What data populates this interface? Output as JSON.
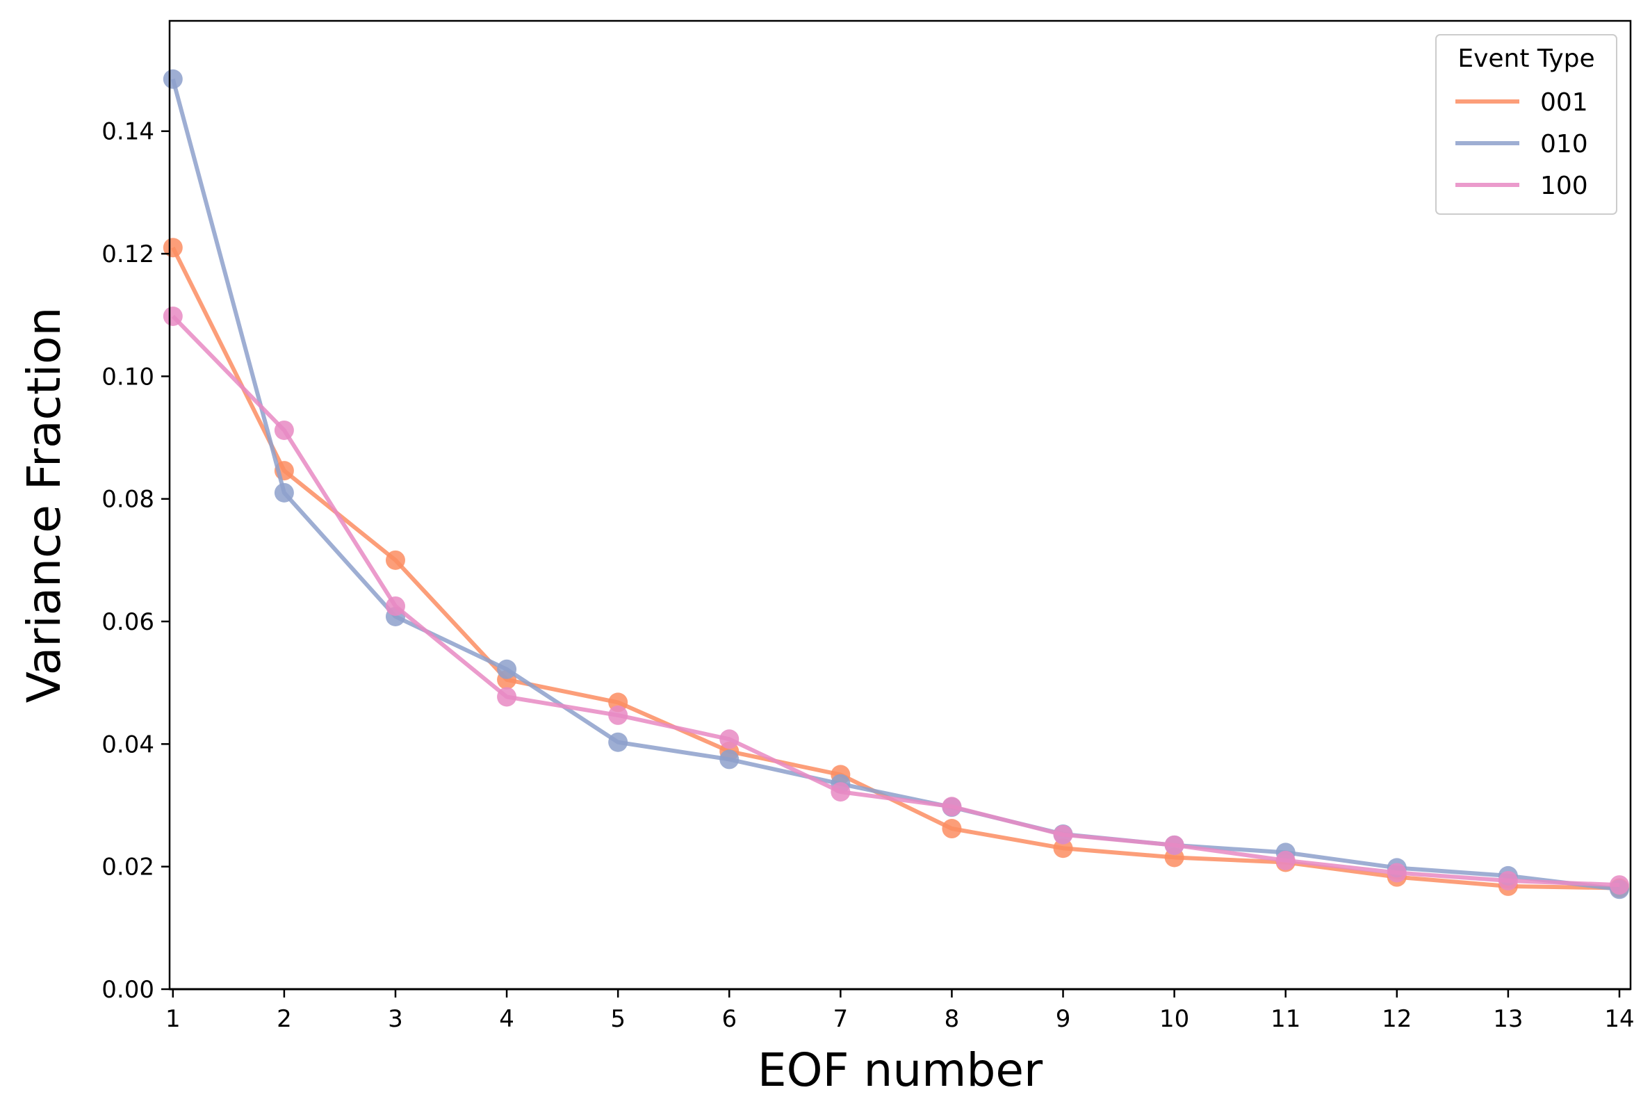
{
  "chart_data": {
    "type": "line",
    "xlabel": "EOF number",
    "ylabel": "Variance Fraction",
    "x": [
      1,
      2,
      3,
      4,
      5,
      6,
      7,
      8,
      9,
      10,
      11,
      12,
      13,
      14
    ],
    "xlim": [
      0.97,
      14.1
    ],
    "ylim": [
      0.0,
      0.158
    ],
    "xticks": [
      "1",
      "2",
      "3",
      "4",
      "5",
      "6",
      "7",
      "8",
      "9",
      "10",
      "11",
      "12",
      "13",
      "14"
    ],
    "yticks": [
      "0.00",
      "0.02",
      "0.04",
      "0.06",
      "0.08",
      "0.10",
      "0.12",
      "0.14"
    ],
    "legend": {
      "title": "Event Type",
      "position": "top-right"
    },
    "grid": false,
    "series": [
      {
        "name": "001",
        "color": "#fc8d62",
        "values": [
          0.121,
          0.0846,
          0.07,
          0.0505,
          0.0468,
          0.0388,
          0.035,
          0.0262,
          0.023,
          0.0215,
          0.0207,
          0.0183,
          0.0168,
          0.0165
        ]
      },
      {
        "name": "010",
        "color": "#8da0cb",
        "values": [
          0.1485,
          0.081,
          0.0608,
          0.0522,
          0.0403,
          0.0375,
          0.0335,
          0.0297,
          0.0253,
          0.0235,
          0.0223,
          0.0198,
          0.0185,
          0.0163
        ]
      },
      {
        "name": "100",
        "color": "#e78ac3",
        "values": [
          0.1098,
          0.0912,
          0.0625,
          0.0477,
          0.0447,
          0.0408,
          0.0322,
          0.0298,
          0.0252,
          0.0235,
          0.021,
          0.019,
          0.0177,
          0.017
        ]
      }
    ]
  }
}
